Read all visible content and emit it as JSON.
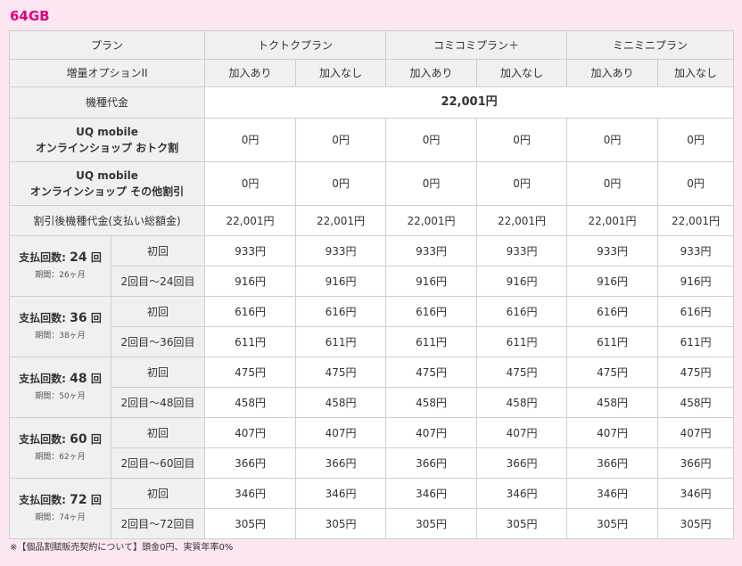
{
  "title": "64GB",
  "header": {
    "plan_label": "プラン",
    "plans": [
      "トクトクプラン",
      "コミコミプラン＋",
      "ミニミニプラン"
    ],
    "option_label": "増量オプションII",
    "option_values": [
      "加入あり",
      "加入なし",
      "加入あり",
      "加入なし",
      "加入あり",
      "加入なし"
    ]
  },
  "device_price": {
    "label": "機種代金",
    "value": "22,001円"
  },
  "discount_online": {
    "label_line1": "UQ mobile",
    "label_line2": "オンラインショップ おトク割",
    "values": [
      "0円",
      "0円",
      "0円",
      "0円",
      "0円",
      "0円"
    ]
  },
  "discount_other": {
    "label_line1": "UQ mobile",
    "label_line2": "オンラインショップ その他割引",
    "values": [
      "0円",
      "0円",
      "0円",
      "0円",
      "0円",
      "0円"
    ]
  },
  "after_discount": {
    "label": "割引後機種代金(支払い総額金)",
    "values": [
      "22,001円",
      "22,001円",
      "22,001円",
      "22,001円",
      "22,001円",
      "22,001円"
    ]
  },
  "installments": [
    {
      "prefix": "支払回数:",
      "count": "24",
      "suffix": "回",
      "period": "期間：26ヶ月",
      "first_label": "初回",
      "first_values": [
        "933円",
        "933円",
        "933円",
        "933円",
        "933円",
        "933円"
      ],
      "rest_label": "2回目〜24回目",
      "rest_values": [
        "916円",
        "916円",
        "916円",
        "916円",
        "916円",
        "916円"
      ]
    },
    {
      "prefix": "支払回数:",
      "count": "36",
      "suffix": "回",
      "period": "期間：38ヶ月",
      "first_label": "初回",
      "first_values": [
        "616円",
        "616円",
        "616円",
        "616円",
        "616円",
        "616円"
      ],
      "rest_label": "2回目〜36回目",
      "rest_values": [
        "611円",
        "611円",
        "611円",
        "611円",
        "611円",
        "611円"
      ]
    },
    {
      "prefix": "支払回数:",
      "count": "48",
      "suffix": "回",
      "period": "期間：50ヶ月",
      "first_label": "初回",
      "first_values": [
        "475円",
        "475円",
        "475円",
        "475円",
        "475円",
        "475円"
      ],
      "rest_label": "2回目〜48回目",
      "rest_values": [
        "458円",
        "458円",
        "458円",
        "458円",
        "458円",
        "458円"
      ]
    },
    {
      "prefix": "支払回数:",
      "count": "60",
      "suffix": "回",
      "period": "期間：62ヶ月",
      "first_label": "初回",
      "first_values": [
        "407円",
        "407円",
        "407円",
        "407円",
        "407円",
        "407円"
      ],
      "rest_label": "2回目〜60回目",
      "rest_values": [
        "366円",
        "366円",
        "366円",
        "366円",
        "366円",
        "366円"
      ]
    },
    {
      "prefix": "支払回数:",
      "count": "72",
      "suffix": "回",
      "period": "期間：74ヶ月",
      "first_label": "初回",
      "first_values": [
        "346円",
        "346円",
        "346円",
        "346円",
        "346円",
        "346円"
      ],
      "rest_label": "2回目〜72回目",
      "rest_values": [
        "305円",
        "305円",
        "305円",
        "305円",
        "305円",
        "305円"
      ]
    }
  ],
  "footnote": "※【個品割賦販売契約について】頭金0円、実質年率0%"
}
